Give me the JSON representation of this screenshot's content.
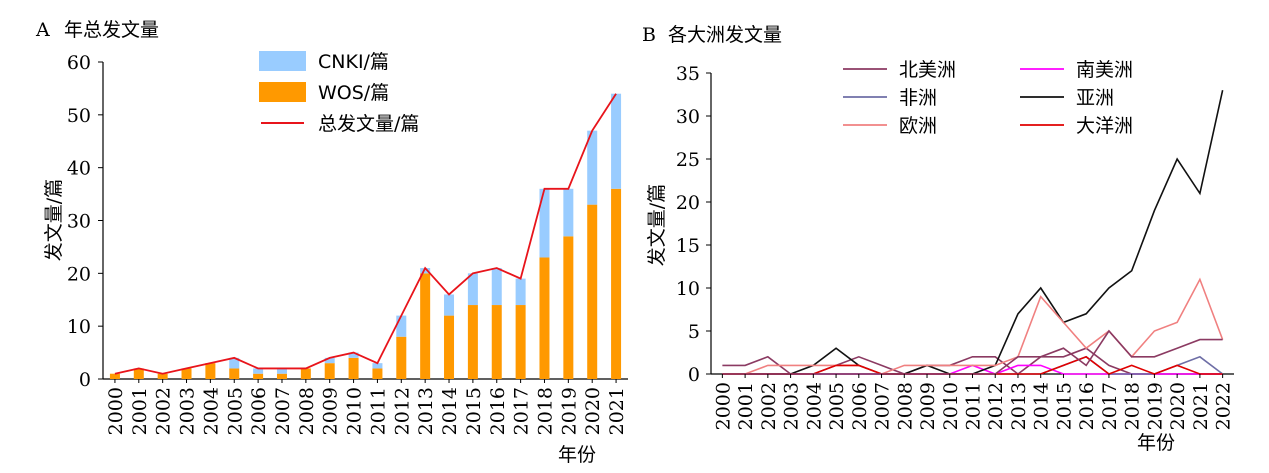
{
  "chart_data": [
    {
      "panel_label": "A",
      "title": "年总发文量",
      "type": "bar",
      "stacked": true,
      "xlabel": "年份",
      "ylabel": "发文量/篇",
      "ylim": [
        0,
        60
      ],
      "yticks": [
        0,
        10,
        20,
        30,
        40,
        50,
        60
      ],
      "categories": [
        "2000",
        "2001",
        "2002",
        "2003",
        "2004",
        "2005",
        "2006",
        "2007",
        "2008",
        "2009",
        "2010",
        "2011",
        "2012",
        "2013",
        "2014",
        "2015",
        "2016",
        "2017",
        "2018",
        "2019",
        "2020",
        "2021"
      ],
      "series": [
        {
          "name": "WOS/篇",
          "kind": "bar",
          "color": "#FF9900",
          "values": [
            1,
            2,
            1,
            2,
            3,
            2,
            1,
            1,
            2,
            3,
            4,
            2,
            8,
            20,
            12,
            14,
            14,
            14,
            23,
            27,
            33,
            36
          ]
        },
        {
          "name": "CNKI/篇",
          "kind": "bar",
          "color": "#99CCFF",
          "values": [
            0,
            0,
            0,
            0,
            0,
            2,
            1,
            1,
            0,
            1,
            1,
            1,
            4,
            1,
            4,
            6,
            7,
            5,
            13,
            9,
            14,
            18
          ]
        },
        {
          "name": "总发文量/篇",
          "kind": "line",
          "color": "#E8141B",
          "values": [
            1,
            2,
            1,
            2,
            3,
            4,
            2,
            2,
            2,
            4,
            5,
            3,
            12,
            21,
            16,
            20,
            21,
            19,
            36,
            36,
            47,
            54
          ]
        }
      ],
      "legend_order": [
        "CNKI/篇",
        "WOS/篇",
        "总发文量/篇"
      ],
      "legend_position": "top-center",
      "grid": false
    },
    {
      "panel_label": "B",
      "title": "各大洲发文量",
      "type": "line",
      "xlabel": "年份",
      "ylabel": "发文量/篇",
      "ylim": [
        0,
        35
      ],
      "yticks": [
        0,
        5,
        10,
        15,
        20,
        25,
        30,
        35
      ],
      "categories": [
        "2000",
        "2001",
        "2002",
        "2003",
        "2004",
        "2005",
        "2006",
        "2007",
        "2008",
        "2009",
        "2010",
        "2011",
        "2012",
        "2013",
        "2014",
        "2015",
        "2016",
        "2017",
        "2018",
        "2019",
        "2020",
        "2021",
        "2022"
      ],
      "series": [
        {
          "name": "北美洲",
          "color": "#8B3A62",
          "values": [
            1,
            1,
            2,
            0,
            0,
            1,
            2,
            1,
            0,
            1,
            1,
            2,
            2,
            0,
            2,
            2,
            3,
            1,
            0,
            0,
            0,
            0,
            0
          ]
        },
        {
          "name": "南美洲",
          "color": "#FF00FF",
          "values": [
            0,
            0,
            0,
            0,
            0,
            0,
            0,
            0,
            0,
            0,
            0,
            1,
            0,
            1,
            1,
            0,
            0,
            0,
            0,
            0,
            0,
            0,
            0
          ]
        },
        {
          "name": "非洲",
          "color": "#6E6EA6",
          "values": [
            0,
            0,
            0,
            0,
            0,
            0,
            0,
            0,
            0,
            0,
            0,
            0,
            0,
            0,
            0,
            1,
            2,
            0,
            0,
            0,
            1,
            2,
            0
          ]
        },
        {
          "name": "亚洲",
          "color": "#111111",
          "values": [
            0,
            0,
            0,
            0,
            1,
            3,
            1,
            0,
            0,
            1,
            0,
            0,
            1,
            7,
            10,
            6,
            7,
            10,
            12,
            19,
            25,
            21,
            33
          ]
        },
        {
          "name": "欧洲",
          "color": "#F08080",
          "values": [
            0,
            0,
            1,
            1,
            1,
            1,
            1,
            0,
            1,
            1,
            1,
            1,
            1,
            2,
            9,
            6,
            3,
            5,
            2,
            5,
            6,
            11,
            4
          ]
        },
        {
          "name": "大洋洲",
          "color": "#E00000",
          "values": [
            0,
            0,
            0,
            0,
            0,
            1,
            1,
            0,
            0,
            0,
            0,
            0,
            0,
            0,
            0,
            1,
            2,
            0,
            1,
            0,
            1,
            0,
            0
          ]
        }
      ],
      "extra_lines": [
        {
          "color": "#8B3A62",
          "values": [
            0,
            0,
            0,
            0,
            0,
            0,
            0,
            0,
            0,
            0,
            0,
            0,
            0,
            2,
            2,
            3,
            1,
            5,
            2,
            2,
            3,
            4,
            4
          ]
        }
      ],
      "legend_position": "top-center",
      "grid": false
    }
  ]
}
